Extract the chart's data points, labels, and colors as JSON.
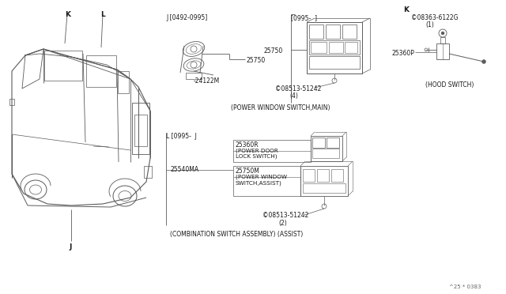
{
  "bg_color": "#ffffff",
  "line_color": "#5a5a5a",
  "text_color": "#1a1a1a",
  "diagram_code": "^25 * 0383",
  "font_size": 5.5,
  "labels": {
    "K_car": "K",
    "L_car": "L",
    "J_car": "J",
    "J_top": "J [0492-0995]",
    "J_bracket": "[0995-  ]",
    "L_bracket": "L [0995-  J",
    "K_label": "K",
    "part_25750_a": "25750",
    "part_24122M": "-24122M",
    "part_25750_b": "25750",
    "part_08513_4": "©08513-51242",
    "qty_4": "(4)",
    "power_window_main": "(POWER WINDOW SWITCH,MAIN)",
    "part_08363": "©08363-6122G",
    "qty_1": "(1)",
    "part_25360P": "25360P",
    "hood_switch": "(HOOD SWITCH)",
    "part_25360R": "25360R",
    "power_door_lock_1": "(POWER DOOR",
    "power_door_lock_2": "LOCK SWITCH)",
    "part_25540MA": "25540MA",
    "part_25750M": "25750M",
    "power_window_assist_1": "(POWER WINDOW",
    "power_window_assist_2": "SWITCH,ASSIST)",
    "part_08513_2": "©08513-51242",
    "qty_2": "(2)",
    "combination_switch": "(COMBINATION SWITCH ASSEMBLY) (ASSIST)"
  }
}
